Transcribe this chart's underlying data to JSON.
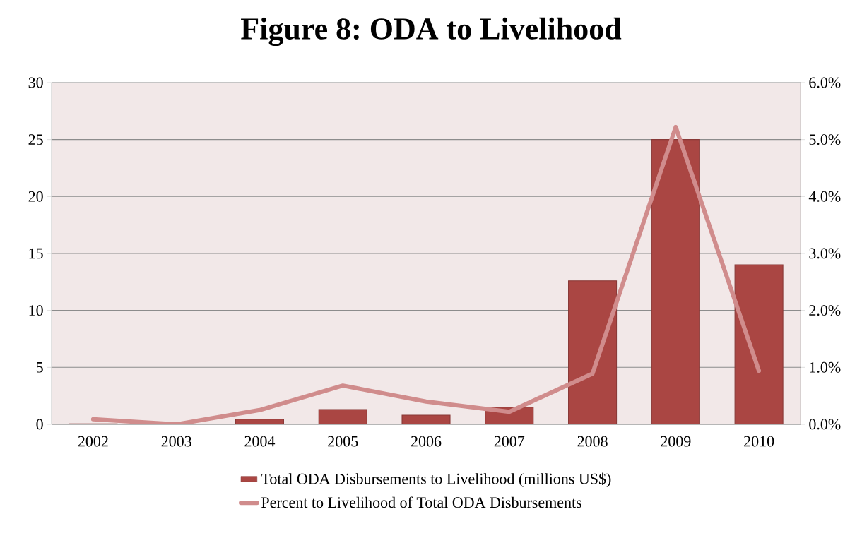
{
  "chart_data": {
    "type": "bar",
    "title": "Figure 8: ODA to Livelihood",
    "categories": [
      "2002",
      "2003",
      "2004",
      "2005",
      "2006",
      "2007",
      "2008",
      "2009",
      "2010"
    ],
    "series": [
      {
        "name": "Total ODA Disbursements to Livelihood (millions US$)",
        "color": "#aa4643",
        "values": [
          0.05,
          0,
          0.45,
          1.3,
          0.8,
          1.5,
          12.6,
          25,
          14
        ]
      },
      {
        "name": "Percent to Livelihood of Total ODA Disbursements",
        "type": "line",
        "axis": "y2",
        "color": "#d08c8c",
        "values": [
          0.09,
          0.0,
          0.25,
          0.68,
          0.4,
          0.22,
          0.89,
          5.22,
          0.94
        ]
      }
    ],
    "ylim": [
      0,
      30
    ],
    "yticks": [
      0,
      5,
      10,
      15,
      20,
      25,
      30
    ],
    "y2lim": [
      0,
      6
    ],
    "y2ticks": [
      {
        "value": 0,
        "label": "0.0%"
      },
      {
        "value": 1,
        "label": "1.0%"
      },
      {
        "value": 2,
        "label": "2.0%"
      },
      {
        "value": 3,
        "label": "3.0%"
      },
      {
        "value": 4,
        "label": "4.0%"
      },
      {
        "value": 5,
        "label": "5.0%"
      },
      {
        "value": 6,
        "label": "6.0%"
      }
    ],
    "grid": "y",
    "legend": "bottom",
    "marker": "none",
    "line_style": "solid"
  }
}
